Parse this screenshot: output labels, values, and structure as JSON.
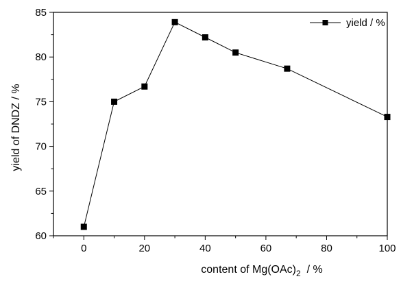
{
  "chart_data": {
    "type": "line",
    "xlabel_main": "content of Mg(OAc)",
    "xlabel_sub": "2",
    "xlabel_tail": "  / %",
    "ylabel": "yield of DNDZ / %",
    "xlim": [
      -10,
      100
    ],
    "ylim": [
      60,
      85
    ],
    "xticks": [
      0,
      20,
      40,
      60,
      80,
      100
    ],
    "yticks": [
      60,
      65,
      70,
      75,
      80,
      85
    ],
    "grid": false,
    "legend_position": "top-right",
    "series": [
      {
        "name": "yield / %",
        "color": "#000000",
        "marker": "square",
        "x": [
          0,
          10,
          20,
          30,
          40,
          50,
          67,
          100
        ],
        "y": [
          61.0,
          75.0,
          76.7,
          83.9,
          82.2,
          80.5,
          78.7,
          73.3
        ]
      }
    ]
  }
}
